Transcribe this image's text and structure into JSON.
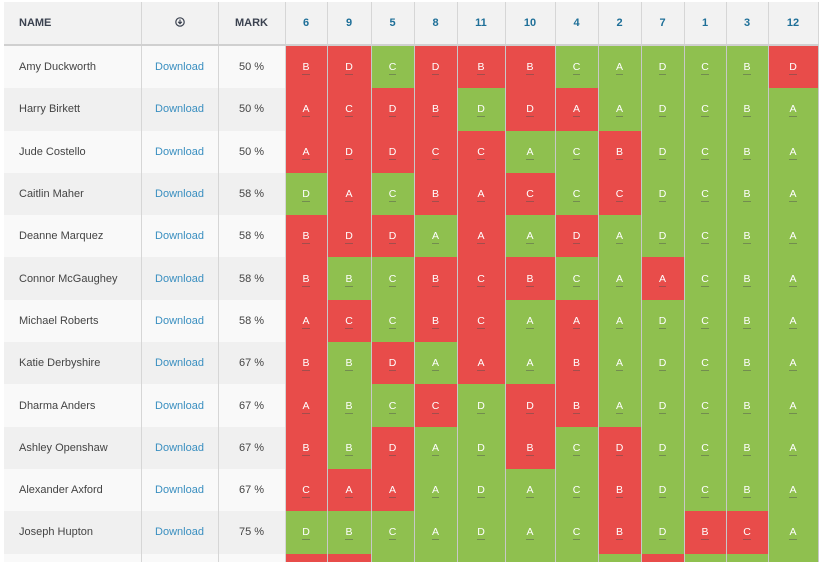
{
  "header": {
    "name": "NAME",
    "download_icon": "download-circle-icon",
    "mark": "MARK",
    "questions": [
      "6",
      "9",
      "5",
      "8",
      "11",
      "10",
      "4",
      "2",
      "7",
      "1",
      "3",
      "12"
    ]
  },
  "colors": {
    "incorrect": "#e84c4a",
    "correct": "#8fc04f",
    "link": "#3a8fc0"
  },
  "download_label": "Download",
  "rows": [
    {
      "name": "Amy Duckworth",
      "mark": "50 %",
      "grades": [
        "B",
        "D",
        "C",
        "D",
        "B",
        "B",
        "C",
        "A",
        "D",
        "C",
        "B",
        "D"
      ],
      "correct": [
        0,
        0,
        1,
        0,
        0,
        0,
        1,
        1,
        1,
        1,
        1,
        0
      ]
    },
    {
      "name": "Harry Birkett",
      "mark": "50 %",
      "grades": [
        "A",
        "C",
        "D",
        "B",
        "D",
        "D",
        "A",
        "A",
        "D",
        "C",
        "B",
        "A"
      ],
      "correct": [
        0,
        0,
        0,
        0,
        1,
        0,
        0,
        1,
        1,
        1,
        1,
        1
      ]
    },
    {
      "name": "Jude Costello",
      "mark": "50 %",
      "grades": [
        "A",
        "D",
        "D",
        "C",
        "C",
        "A",
        "C",
        "B",
        "D",
        "C",
        "B",
        "A"
      ],
      "correct": [
        0,
        0,
        0,
        0,
        0,
        1,
        1,
        0,
        1,
        1,
        1,
        1
      ]
    },
    {
      "name": "Caitlin Maher",
      "mark": "58 %",
      "grades": [
        "D",
        "A",
        "C",
        "B",
        "A",
        "C",
        "C",
        "C",
        "D",
        "C",
        "B",
        "A"
      ],
      "correct": [
        1,
        0,
        1,
        0,
        0,
        0,
        1,
        0,
        1,
        1,
        1,
        1
      ]
    },
    {
      "name": "Deanne Marquez",
      "mark": "58 %",
      "grades": [
        "B",
        "D",
        "D",
        "A",
        "A",
        "A",
        "D",
        "A",
        "D",
        "C",
        "B",
        "A"
      ],
      "correct": [
        0,
        0,
        0,
        1,
        0,
        1,
        0,
        1,
        1,
        1,
        1,
        1
      ]
    },
    {
      "name": "Connor McGaughey",
      "mark": "58 %",
      "grades": [
        "B",
        "B",
        "C",
        "B",
        "C",
        "B",
        "C",
        "A",
        "A",
        "C",
        "B",
        "A"
      ],
      "correct": [
        0,
        1,
        1,
        0,
        0,
        0,
        1,
        1,
        0,
        1,
        1,
        1
      ]
    },
    {
      "name": "Michael Roberts",
      "mark": "58 %",
      "grades": [
        "A",
        "C",
        "C",
        "B",
        "C",
        "A",
        "A",
        "A",
        "D",
        "C",
        "B",
        "A"
      ],
      "correct": [
        0,
        0,
        1,
        0,
        0,
        1,
        0,
        1,
        1,
        1,
        1,
        1
      ]
    },
    {
      "name": "Katie Derbyshire",
      "mark": "67 %",
      "grades": [
        "B",
        "B",
        "D",
        "A",
        "A",
        "A",
        "B",
        "A",
        "D",
        "C",
        "B",
        "A"
      ],
      "correct": [
        0,
        1,
        0,
        1,
        0,
        1,
        0,
        1,
        1,
        1,
        1,
        1
      ]
    },
    {
      "name": "Dharma Anders",
      "mark": "67 %",
      "grades": [
        "A",
        "B",
        "C",
        "C",
        "D",
        "D",
        "B",
        "A",
        "D",
        "C",
        "B",
        "A"
      ],
      "correct": [
        0,
        1,
        1,
        0,
        1,
        0,
        0,
        1,
        1,
        1,
        1,
        1
      ]
    },
    {
      "name": "Ashley Openshaw",
      "mark": "67 %",
      "grades": [
        "B",
        "B",
        "D",
        "A",
        "D",
        "B",
        "C",
        "D",
        "D",
        "C",
        "B",
        "A"
      ],
      "correct": [
        0,
        1,
        0,
        1,
        1,
        0,
        1,
        0,
        1,
        1,
        1,
        1
      ]
    },
    {
      "name": "Alexander Axford",
      "mark": "67 %",
      "grades": [
        "C",
        "A",
        "A",
        "A",
        "D",
        "A",
        "C",
        "B",
        "D",
        "C",
        "B",
        "A"
      ],
      "correct": [
        0,
        0,
        0,
        1,
        1,
        1,
        1,
        0,
        1,
        1,
        1,
        1
      ]
    },
    {
      "name": "Joseph Hupton",
      "mark": "75 %",
      "grades": [
        "D",
        "B",
        "C",
        "A",
        "D",
        "A",
        "C",
        "B",
        "D",
        "B",
        "C",
        "A"
      ],
      "correct": [
        1,
        1,
        1,
        1,
        1,
        1,
        1,
        0,
        1,
        0,
        0,
        1
      ]
    }
  ],
  "partial_row_correct": [
    0,
    0,
    1,
    1,
    1,
    1,
    1,
    1,
    0,
    1,
    1,
    1
  ]
}
